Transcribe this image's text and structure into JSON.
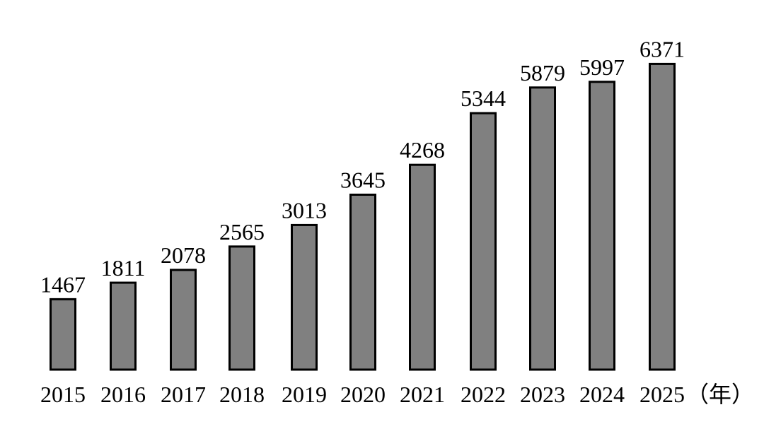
{
  "chart_data": {
    "type": "bar",
    "categories": [
      "2015",
      "2016",
      "2017",
      "2018",
      "2019",
      "2020",
      "2021",
      "2022",
      "2023",
      "2024",
      "2025"
    ],
    "values": [
      1467,
      1811,
      2078,
      2565,
      3013,
      3645,
      4268,
      5344,
      5879,
      5997,
      6371
    ],
    "title": "",
    "xlabel": "（年）",
    "ylabel": "",
    "ylim": [
      0,
      7200
    ],
    "grid": false,
    "legend": "none",
    "bar_color": "#808080",
    "bar_outline": "#000000"
  }
}
